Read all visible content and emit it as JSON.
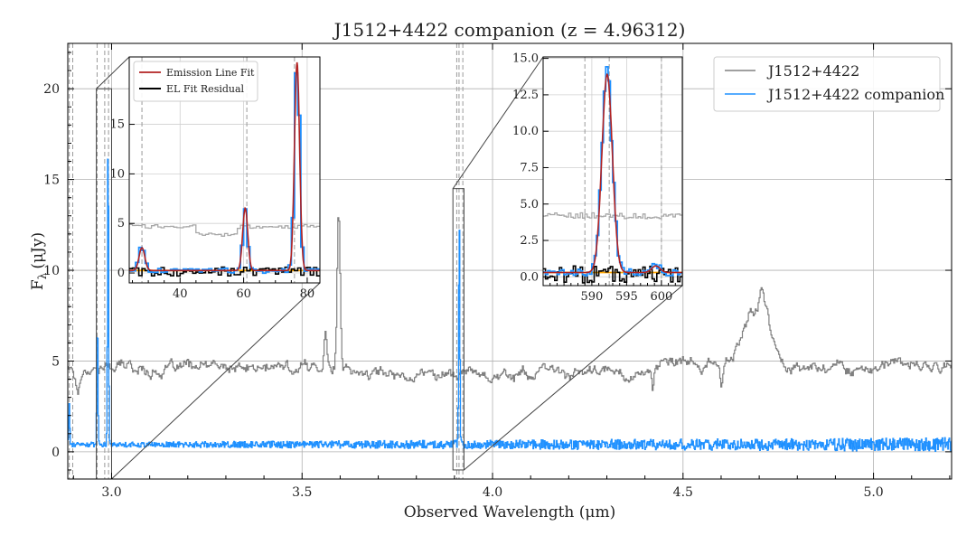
{
  "chart_data": [
    {
      "id": "main",
      "type": "line",
      "title": "J1512+4422 companion (z = 4.96312)",
      "xlabel": "Observed Wavelength (μm)",
      "ylabel": "F",
      "ylabel_sub": "λ",
      "ylabel_unit": "(μJy)",
      "xlim": [
        2.885,
        5.205
      ],
      "ylim": [
        -1.5,
        22.5
      ],
      "xticks": [
        3.0,
        3.5,
        4.0,
        4.5,
        5.0
      ],
      "xtick_labels": [
        "3.0",
        "3.5",
        "4.0",
        "4.5",
        "5.0"
      ],
      "yticks": [
        0,
        5,
        10,
        15,
        20
      ],
      "ytick_labels": [
        "0",
        "5",
        "10",
        "15",
        "20"
      ],
      "grid": true,
      "legend_position": "top-right",
      "series": [
        {
          "name": "J1512+4422",
          "color": "#808080",
          "baseline": 4.7,
          "features": [
            {
              "center": 2.91,
              "width": 0.006,
              "amp": -1.3
            },
            {
              "center": 3.56,
              "width": 0.004,
              "amp": 2.3
            },
            {
              "center": 3.595,
              "width": 0.004,
              "amp": 8.5
            },
            {
              "center": 4.42,
              "width": 0.003,
              "amp": -1.2
            },
            {
              "center": 4.6,
              "width": 0.003,
              "amp": -1.3
            },
            {
              "center": 4.69,
              "width": 0.035,
              "amp": 3.0
            },
            {
              "center": 4.705,
              "width": 0.006,
              "amp": 1.6
            },
            {
              "center": 4.72,
              "width": 0.004,
              "amp": 1.2
            }
          ]
        },
        {
          "name": "J1512+4422 companion",
          "color": "#1e90ff",
          "baseline": 0.4,
          "features": [
            {
              "center": 2.888,
              "width": 0.0015,
              "amp": 2.4
            },
            {
              "center": 2.962,
              "width": 0.0015,
              "amp": 6.8
            },
            {
              "center": 2.99,
              "width": 0.0015,
              "amp": 17.0
            },
            {
              "center": 3.912,
              "width": 0.0015,
              "amp": 12.3
            }
          ]
        }
      ],
      "vlines": [
        2.889,
        2.898,
        2.962,
        2.982,
        2.992,
        3.906,
        3.912,
        3.922
      ],
      "zoom_boxes": [
        {
          "x0": 2.96,
          "x1": 3.0,
          "y0": -1.5,
          "y1": 20.0
        },
        {
          "x0": 3.896,
          "x1": 3.925,
          "y0": -1.0,
          "y1": 14.5
        }
      ]
    },
    {
      "id": "inset1",
      "type": "line",
      "xlim": [
        24,
        84
      ],
      "ylim": [
        -1.0,
        21.8
      ],
      "xticks": [
        40,
        60,
        80
      ],
      "xtick_labels": [
        "40",
        "60",
        "80"
      ],
      "yticks": [
        0,
        5,
        10,
        15
      ],
      "ytick_labels": [
        "0",
        "5",
        "10",
        "15"
      ],
      "legend": [
        "Emission Line Fit",
        "EL Fit Residual"
      ],
      "lines": [
        {
          "center": 28,
          "amp": 2.3,
          "width": 0.9
        },
        {
          "center": 60.5,
          "amp": 6.3,
          "width": 0.8
        },
        {
          "center": 76.8,
          "amp": 21.0,
          "width": 0.8
        }
      ],
      "vlines": [
        28,
        61,
        76
      ],
      "continuum_level": 0.25,
      "host_level": 4.7
    },
    {
      "id": "inset2",
      "type": "line",
      "xlim": [
        583,
        603
      ],
      "ylim": [
        -0.6,
        15.1
      ],
      "xticks": [
        590,
        595,
        600
      ],
      "xtick_labels": [
        "590",
        "595",
        "600"
      ],
      "yticks": [
        0.0,
        2.5,
        5.0,
        7.5,
        10.0,
        12.5,
        15.0
      ],
      "ytick_labels": [
        "0.0",
        "2.5",
        "5.0",
        "7.5",
        "10.0",
        "12.5",
        "15.0"
      ],
      "lines": [
        {
          "center": 592.2,
          "amp": 13.6,
          "width": 0.75
        },
        {
          "center": 599.2,
          "amp": 0.45,
          "width": 0.6
        }
      ],
      "vlines": [
        589,
        592.5,
        600
      ],
      "continuum_level": 0.3,
      "host_level": 4.2
    }
  ],
  "colors": {
    "host": "#808080",
    "companion": "#1e90ff",
    "fit": "#b22222",
    "residual": "#000000",
    "continuum": "#ffa500",
    "grid": "#b0b0b0"
  }
}
